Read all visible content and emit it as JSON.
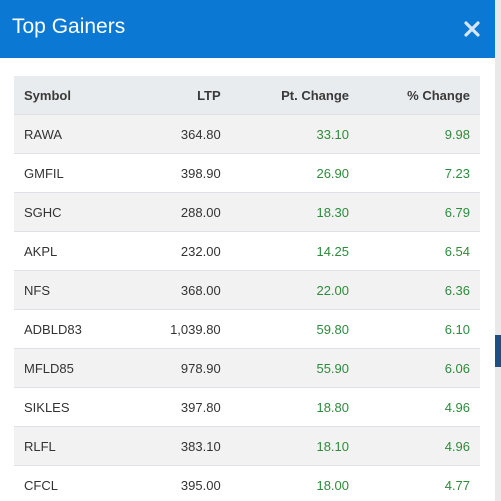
{
  "header": {
    "title": "Top Gainers"
  },
  "table": {
    "columns": [
      "Symbol",
      "LTP",
      "Pt. Change",
      "% Change"
    ],
    "rows": [
      [
        "RAWA",
        "364.80",
        "33.10",
        "9.98"
      ],
      [
        "GMFIL",
        "398.90",
        "26.90",
        "7.23"
      ],
      [
        "SGHC",
        "288.00",
        "18.30",
        "6.79"
      ],
      [
        "AKPL",
        "232.00",
        "14.25",
        "6.54"
      ],
      [
        "NFS",
        "368.00",
        "22.00",
        "6.36"
      ],
      [
        "ADBLD83",
        "1,039.80",
        "59.80",
        "6.10"
      ],
      [
        "MFLD85",
        "978.90",
        "55.90",
        "6.06"
      ],
      [
        "SIKLES",
        "397.80",
        "18.80",
        "4.96"
      ],
      [
        "RLFL",
        "383.10",
        "18.10",
        "4.96"
      ],
      [
        "CFCL",
        "395.00",
        "18.00",
        "4.77"
      ]
    ]
  }
}
